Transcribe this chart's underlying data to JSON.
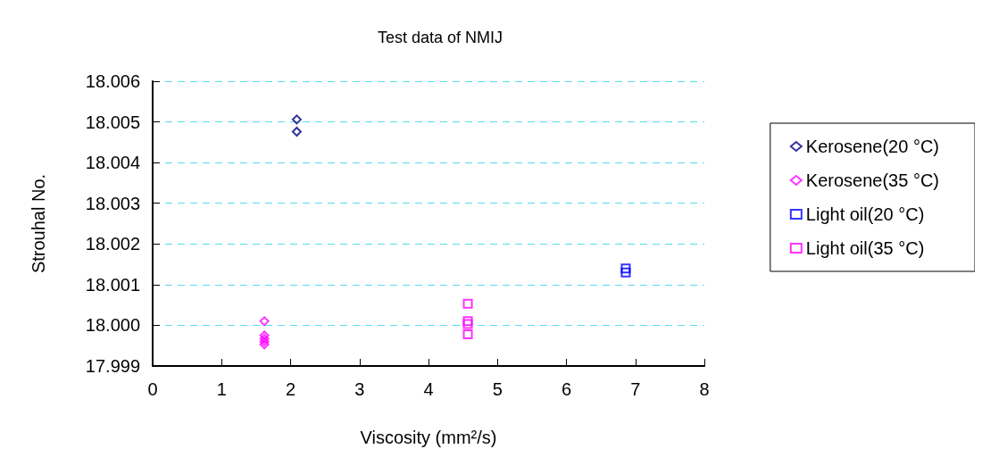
{
  "chart_data": {
    "type": "scatter",
    "title": "Test data of NMIJ",
    "xlabel": "Viscosity (mm²/s)",
    "ylabel": "Strouhal No.",
    "xlim": [
      0,
      8
    ],
    "xticks": [
      0,
      1,
      2,
      3,
      4,
      5,
      6,
      7,
      8
    ],
    "ylim": [
      17.999,
      18.006
    ],
    "yticks": [
      17.999,
      {
        "value": 18,
        "label": "18.000"
      },
      18.001,
      18.002,
      18.003,
      18.004,
      18.005,
      18.006
    ],
    "grid": "y",
    "legend": "right",
    "series": [
      {
        "name": "Kerosene(20 °C)",
        "color": "#000080",
        "marker": "diamond",
        "x": [
          2.09,
          2.09
        ],
        "values": [
          18.00506,
          18.00476
        ]
      },
      {
        "name": "Kerosene(35 °C)",
        "color": "#ff00ff",
        "marker": "diamond",
        "x": [
          1.62,
          1.62,
          1.62,
          1.62,
          1.62
        ],
        "values": [
          18.0001,
          17.99975,
          17.99967,
          17.9996,
          17.99953
        ]
      },
      {
        "name": "Light oil(20 °C)",
        "color": "#0000ff",
        "marker": "square",
        "x": [
          6.86,
          6.86
        ],
        "values": [
          18.0014,
          18.0013
        ]
      },
      {
        "name": "Light oil(35 °C)",
        "color": "#ff00ff",
        "marker": "square",
        "x": [
          4.57,
          4.57,
          4.57,
          4.57
        ],
        "values": [
          18.00053,
          18.0001,
          18.00003,
          17.99978
        ]
      }
    ]
  }
}
